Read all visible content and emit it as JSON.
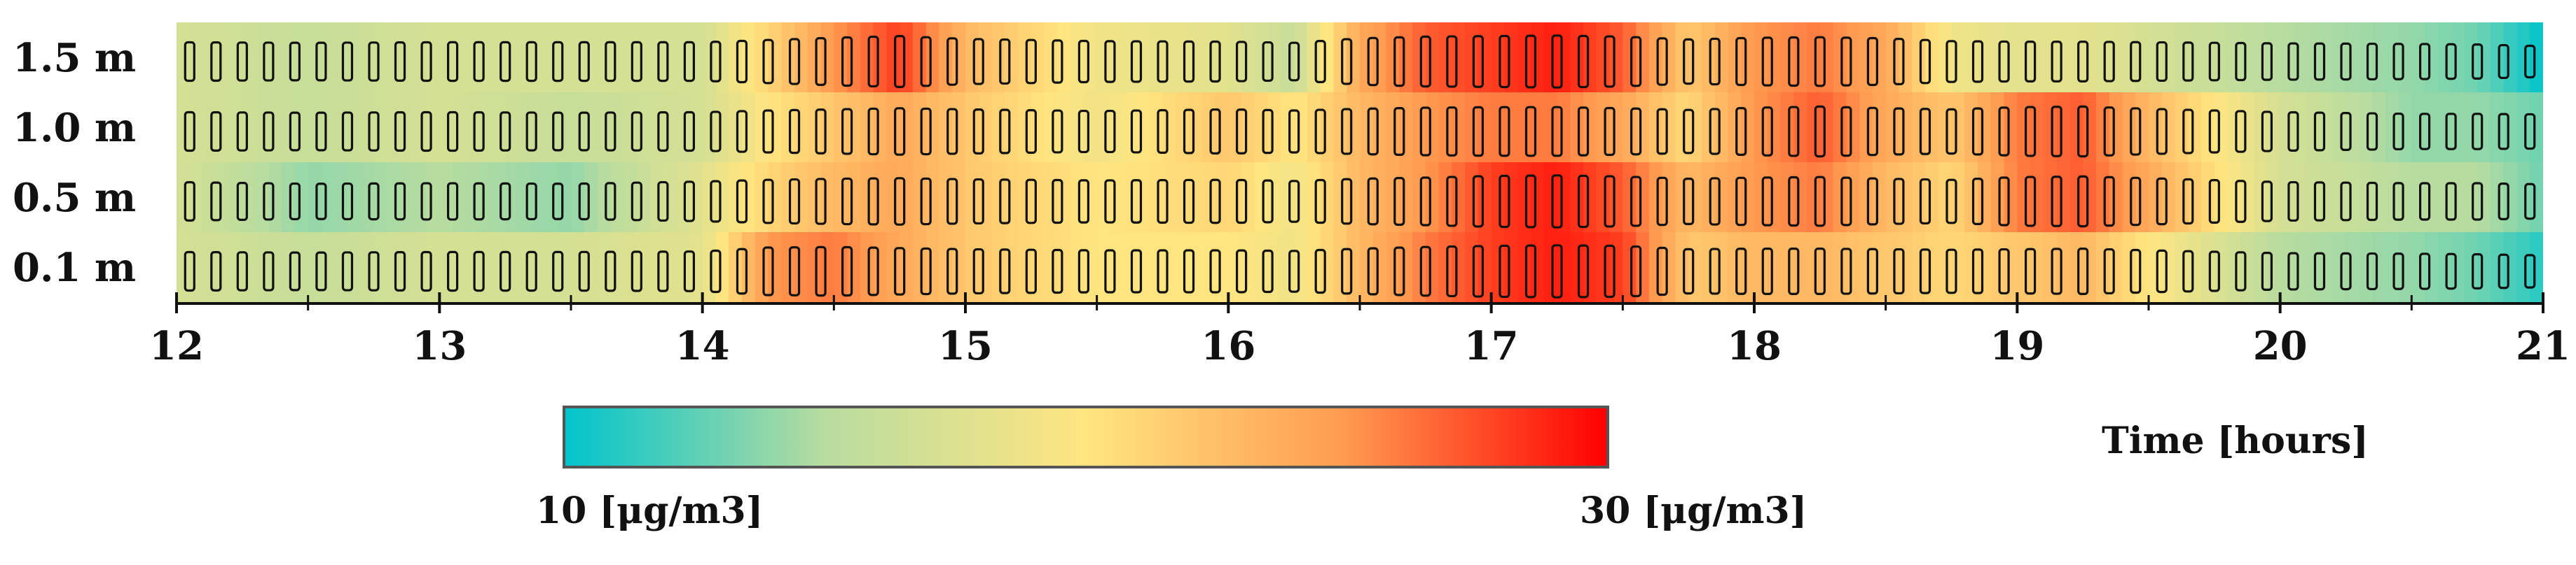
{
  "chart_data": {
    "type": "heatmap",
    "title": "",
    "xlabel": "Time   [hours]",
    "ylabel": "",
    "x_ticks": [
      12,
      13,
      14,
      15,
      16,
      17,
      18,
      19,
      20,
      21
    ],
    "xlim": [
      12,
      21
    ],
    "y_categories": [
      "1.5 m",
      "1.0 m",
      "0.5 m",
      "0.1 m"
    ],
    "color_scale": {
      "min": 10,
      "max": 30,
      "min_label": "10 [μg/m3]",
      "max_label": "30 [μg/m3]",
      "colors": [
        "#00c4cc",
        "#b8dca0",
        "#ffe580",
        "#ff9a50",
        "#ff0000"
      ]
    },
    "time_hours": [
      12.0,
      12.5,
      13.0,
      13.5,
      14.0,
      14.25,
      14.5,
      14.75,
      15.0,
      15.5,
      16.0,
      16.25,
      16.5,
      16.75,
      17.0,
      17.25,
      17.5,
      17.75,
      18.0,
      18.25,
      18.5,
      18.75,
      19.0,
      19.25,
      19.5,
      20.0,
      20.5,
      20.75,
      21.0
    ],
    "series": [
      {
        "name": "1.5 m",
        "values": [
          17,
          16,
          17,
          17,
          17,
          21,
          25,
          28,
          23,
          19,
          18,
          16,
          24,
          27,
          28,
          29,
          27,
          22,
          25,
          26,
          24,
          19,
          18,
          18,
          17,
          15,
          14,
          13,
          10
        ]
      },
      {
        "name": "1.0 m",
        "values": [
          17,
          16,
          17,
          16,
          17,
          20,
          22,
          24,
          22,
          19,
          22,
          20,
          23,
          25,
          26,
          26,
          24,
          21,
          25,
          27,
          24,
          22,
          26,
          27,
          23,
          17,
          14,
          14,
          13
        ]
      },
      {
        "name": "0.5 m",
        "values": [
          17,
          14,
          15,
          14,
          18,
          21,
          23,
          24,
          22,
          20,
          21,
          19,
          23,
          25,
          28,
          29,
          27,
          23,
          25,
          26,
          23,
          21,
          26,
          27,
          24,
          17,
          15,
          15,
          13
        ]
      },
      {
        "name": "0.1 m",
        "values": [
          17,
          16,
          17,
          17,
          18,
          25,
          26,
          24,
          22,
          20,
          20,
          19,
          23,
          26,
          28,
          29,
          28,
          22,
          23,
          23,
          22,
          21,
          22,
          23,
          20,
          15,
          14,
          13,
          11
        ]
      }
    ]
  },
  "colorbar_caption_unit_suffix": "3"
}
